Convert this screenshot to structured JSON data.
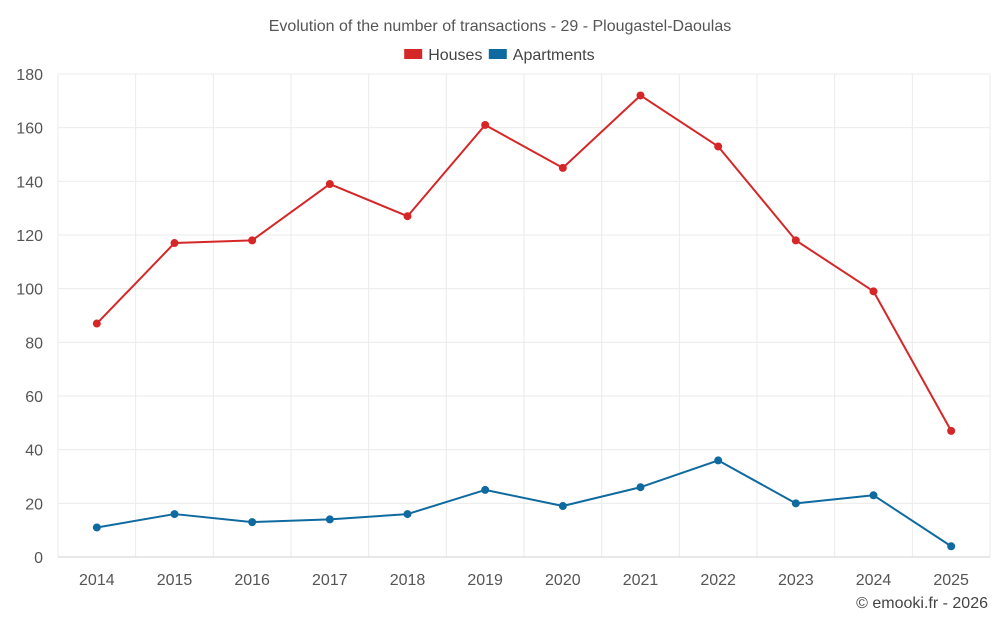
{
  "chart_data": {
    "type": "line",
    "title": "Evolution of the number of transactions - 29 - Plougastel-Daoulas",
    "xlabel": "",
    "ylabel": "",
    "categories": [
      "2014",
      "2015",
      "2016",
      "2017",
      "2018",
      "2019",
      "2020",
      "2021",
      "2022",
      "2023",
      "2024",
      "2025"
    ],
    "ylim": [
      0,
      180
    ],
    "yticks": [
      0,
      20,
      40,
      60,
      80,
      100,
      120,
      140,
      160,
      180
    ],
    "grid": true,
    "legend_position": "top-center",
    "series": [
      {
        "name": "Houses",
        "color": "#d62728",
        "values": [
          87,
          117,
          118,
          139,
          127,
          161,
          145,
          172,
          153,
          118,
          99,
          47
        ]
      },
      {
        "name": "Apartments",
        "color": "#0f6aa0",
        "values": [
          11,
          16,
          13,
          14,
          16,
          25,
          19,
          26,
          36,
          20,
          23,
          4
        ]
      }
    ]
  },
  "credit": "© emooki.fr - 2026"
}
